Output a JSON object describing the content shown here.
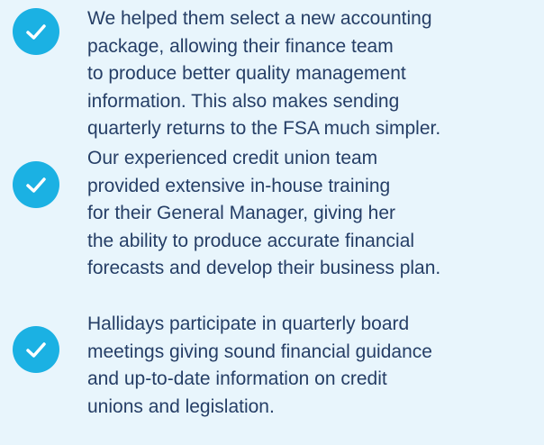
{
  "items": [
    {
      "lines": [
        "We helped them select a new accounting",
        "package, allowing their finance team",
        "to produce better quality management",
        "information. This also makes sending",
        "quarterly returns to the FSA much simpler."
      ]
    },
    {
      "lines": [
        "Our experienced credit union team",
        "provided extensive in-house training",
        "for their General Manager, giving her",
        "the ability to produce accurate financial",
        "forecasts and develop their business plan."
      ]
    },
    {
      "lines": [
        "Hallidays participate in quarterly board",
        "meetings giving sound financial guidance",
        "and up-to-date information on credit",
        "unions and legislation."
      ]
    }
  ]
}
